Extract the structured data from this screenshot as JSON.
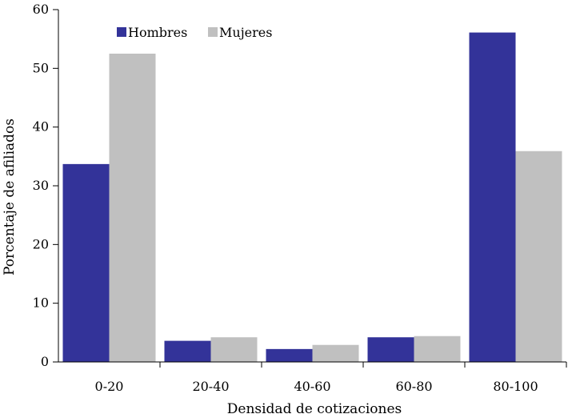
{
  "chart_data": {
    "type": "bar",
    "categories": [
      "0-20",
      "20-40",
      "40-60",
      "60-80",
      "80-100"
    ],
    "series": [
      {
        "name": "Hombres",
        "color": "#333399",
        "values": [
          33.7,
          3.6,
          2.2,
          4.2,
          56.1
        ]
      },
      {
        "name": "Mujeres",
        "color": "#C0C0C0",
        "values": [
          52.5,
          4.2,
          2.9,
          4.4,
          35.9
        ]
      }
    ],
    "xlabel": "Densidad de cotizaciones",
    "ylabel": "Porcentaje de afiliados",
    "ylim": [
      0,
      60
    ],
    "yticks": [
      0,
      10,
      20,
      30,
      40,
      50,
      60
    ],
    "grid": false,
    "legend": "top-left"
  }
}
